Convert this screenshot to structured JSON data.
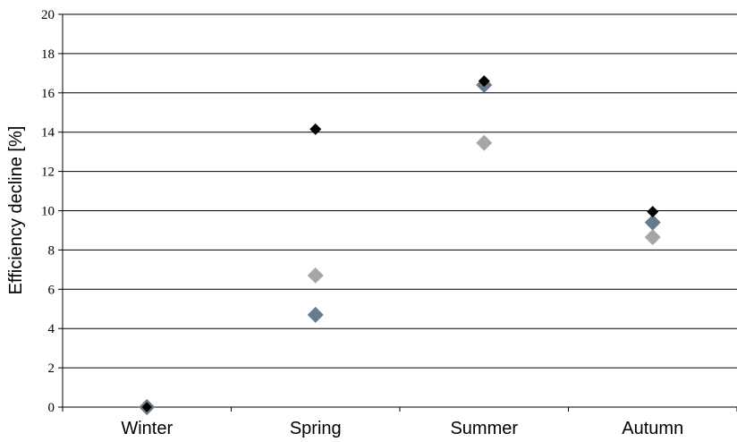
{
  "chart_data": {
    "type": "scatter",
    "categories": [
      "Winter",
      "Spring",
      "Summer",
      "Autumn"
    ],
    "xlabel": "",
    "ylabel": "Efficiency decline [%]",
    "ylim": [
      0,
      20
    ],
    "yticks": [
      0,
      2,
      4,
      6,
      8,
      10,
      12,
      14,
      16,
      18,
      20
    ],
    "grid": true,
    "legend": "none",
    "series": [
      {
        "color": "#a6a6a6",
        "values": [
          0,
          6.7,
          13.45,
          8.65
        ]
      },
      {
        "color": "#677a8f",
        "values": [
          0,
          4.7,
          16.4,
          9.4
        ]
      },
      {
        "color": "#000000",
        "values": [
          0,
          14.15,
          16.6,
          9.95
        ]
      }
    ]
  }
}
